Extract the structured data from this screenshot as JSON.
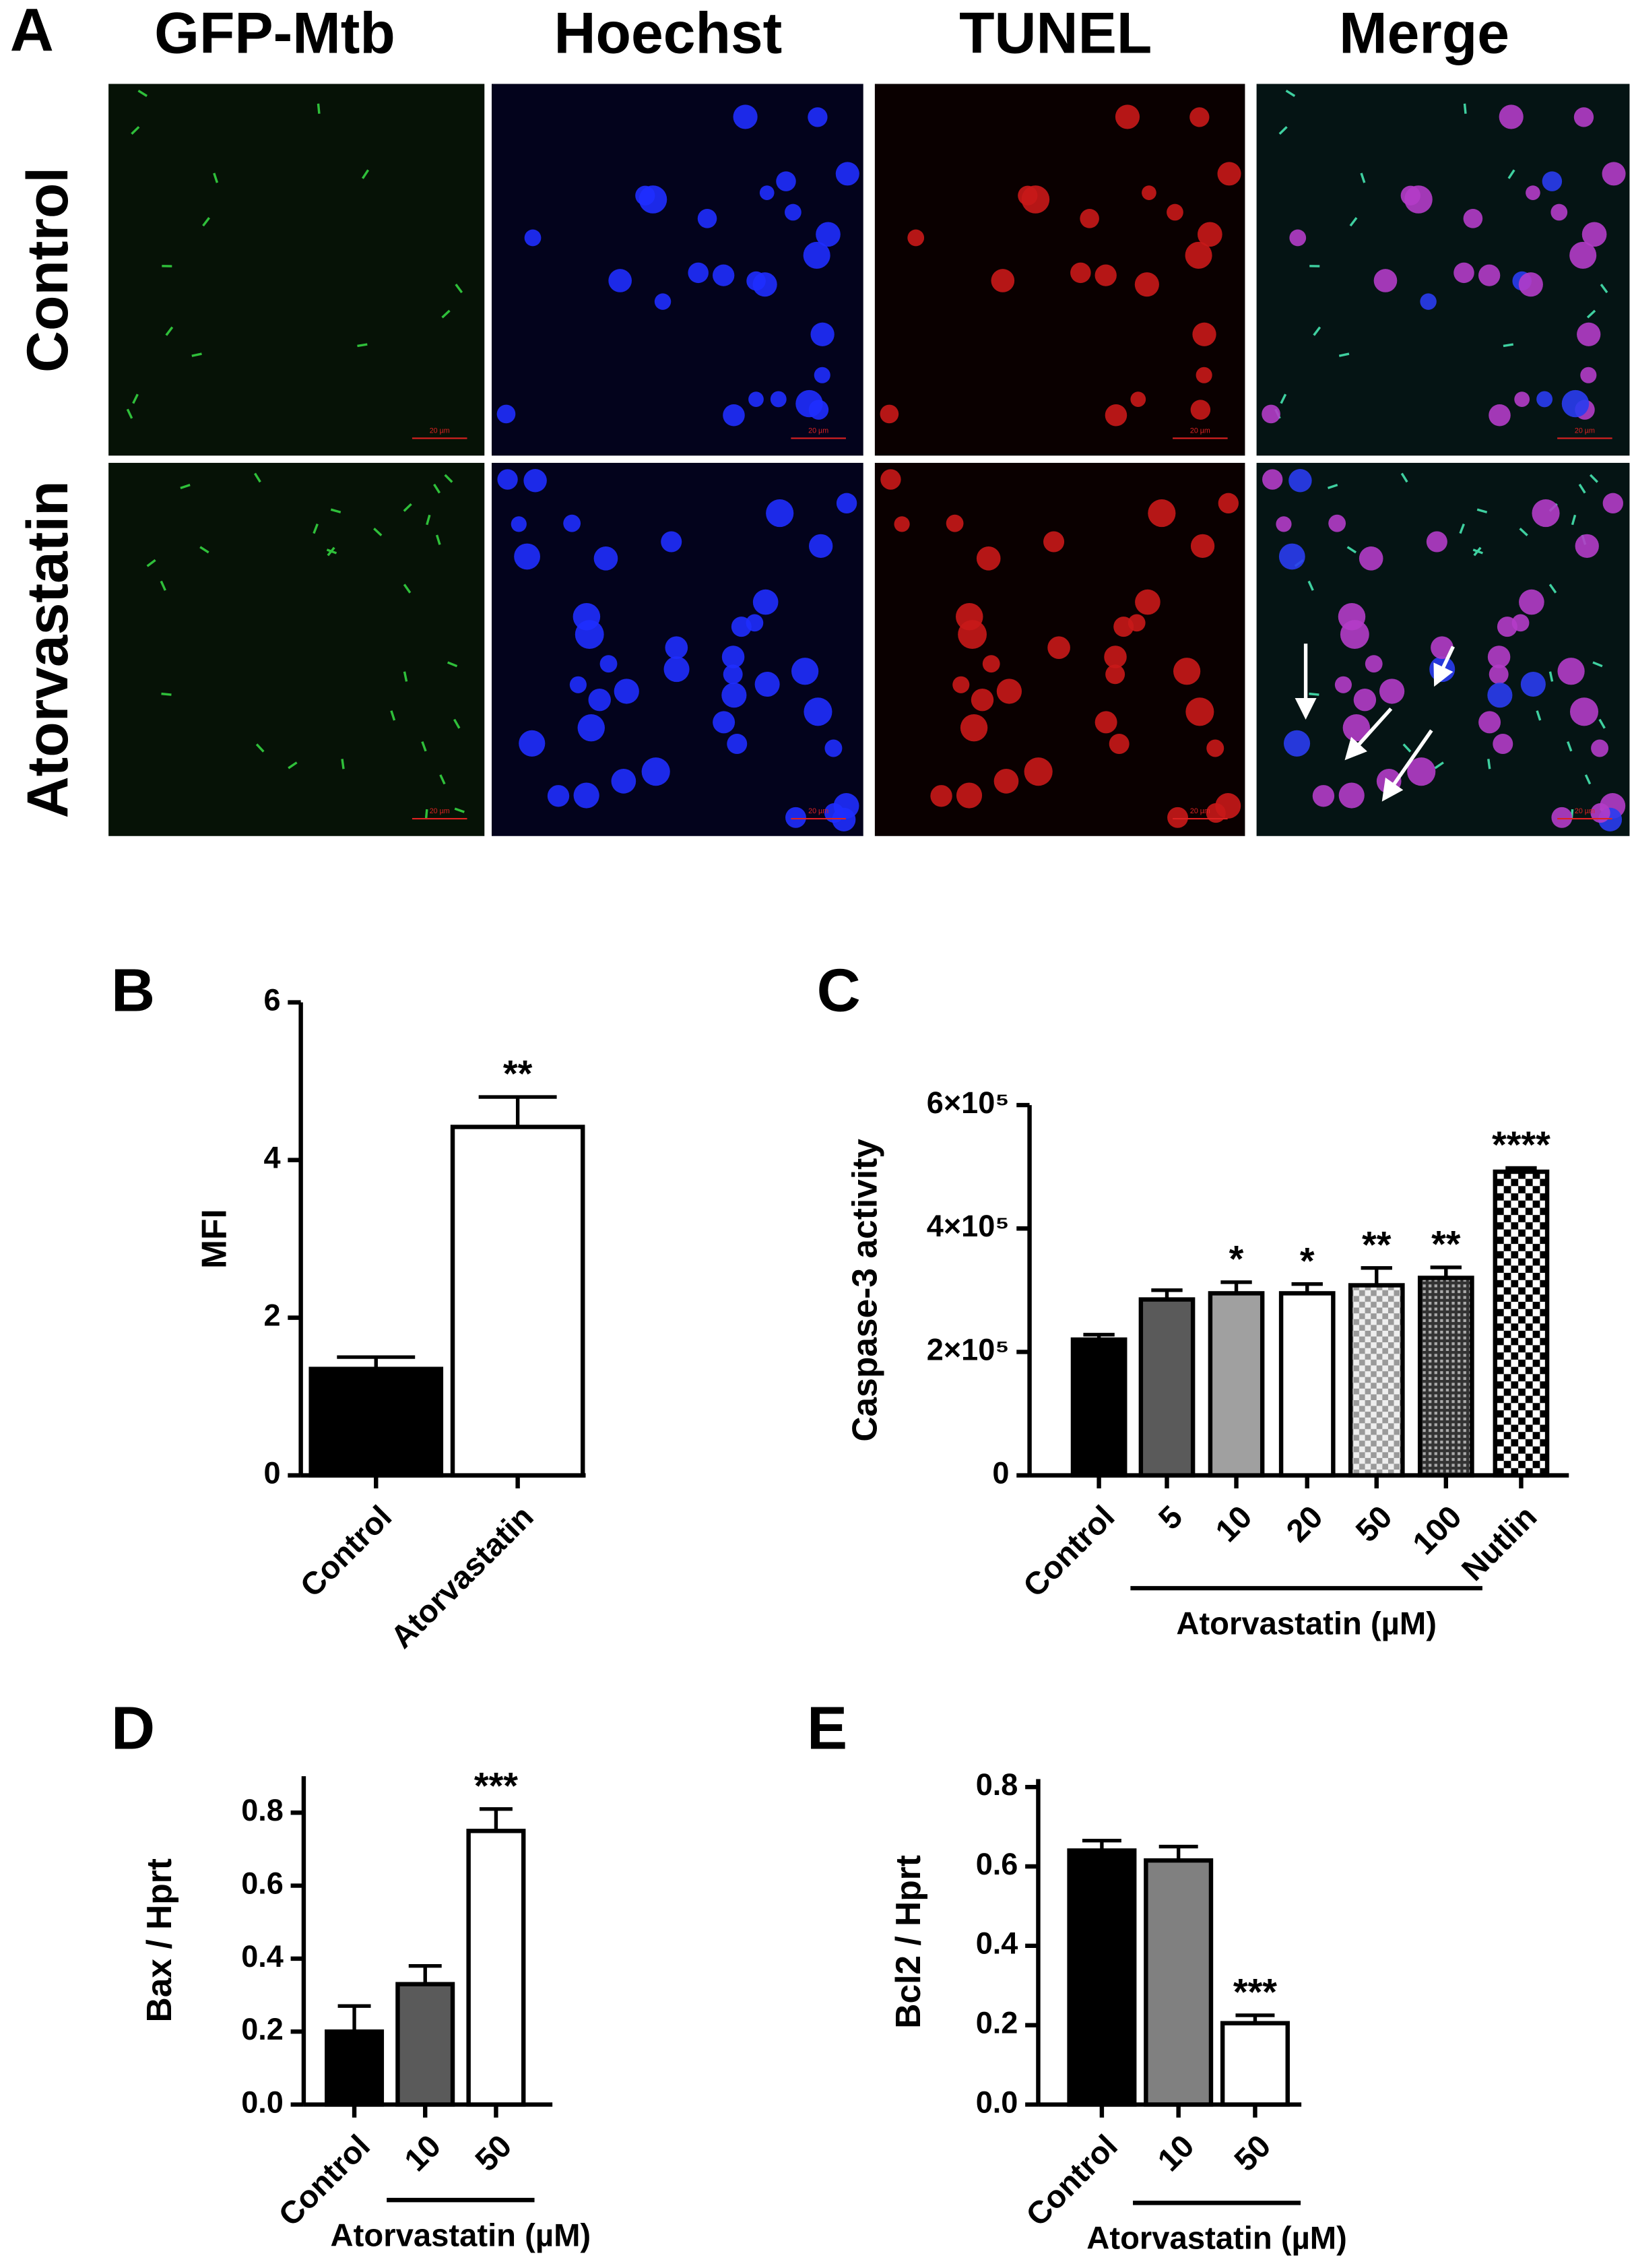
{
  "panel_a": {
    "label": "A",
    "columns": [
      "GFP-Mtb",
      "Hoechst",
      "TUNEL",
      "Merge"
    ],
    "rows": [
      "Control",
      "Atorvastatin"
    ],
    "scale_bar": "20 µm"
  },
  "chart_data": [
    {
      "type": "bar",
      "label": "B",
      "y_label": "MFI",
      "categories": [
        "Control",
        "Atorvastatin"
      ],
      "values": [
        1.35,
        4.42
      ],
      "errors": [
        0.15,
        0.38
      ],
      "significance": [
        null,
        "**"
      ],
      "fills": [
        "#000000",
        "#ffffff"
      ],
      "ylim": [
        0,
        6
      ],
      "yticks": [
        0,
        2,
        4,
        6
      ]
    },
    {
      "type": "bar",
      "label": "C",
      "y_label": "Caspase-3 activity",
      "categories": [
        "Control",
        "5",
        "10",
        "20",
        "50",
        "100",
        "Nutlin"
      ],
      "values": [
        220000,
        285000,
        295000,
        295000,
        308000,
        320000,
        492000
      ],
      "errors": [
        8000,
        15000,
        18000,
        15000,
        28000,
        17000,
        6000
      ],
      "significance": [
        null,
        null,
        "*",
        "*",
        "**",
        "**",
        "****"
      ],
      "fills": [
        "#000000",
        "#5a5a5a",
        "#a0a0a0",
        "#ffffff",
        "checker-light",
        "checker-dark",
        "checker-large"
      ],
      "group_label": "Atorvastatin (µM)",
      "ylim": [
        0,
        600000
      ],
      "yticks": [
        0,
        {
          "value": 200000,
          "label": "2×10⁵"
        },
        {
          "value": 400000,
          "label": "4×10⁵"
        },
        {
          "value": 600000,
          "label": "6×10⁵"
        }
      ]
    },
    {
      "type": "bar",
      "label": "D",
      "y_label": "Bax / Hprt",
      "categories": [
        "Control",
        "10",
        "50"
      ],
      "values": [
        0.2,
        0.33,
        0.75
      ],
      "errors": [
        0.07,
        0.05,
        0.06
      ],
      "significance": [
        null,
        null,
        "***"
      ],
      "fills": [
        "#000000",
        "#5a5a5a",
        "#ffffff"
      ],
      "group_label": "Atorvastatin (µM)",
      "ylim": [
        0,
        0.9
      ],
      "yticks": [
        {
          "value": 0,
          "label": "0.0"
        },
        0.2,
        0.4,
        0.6,
        0.8
      ]
    },
    {
      "type": "bar",
      "label": "E",
      "y_label": "Bcl2 / Hprt",
      "categories": [
        "Control",
        "10",
        "50"
      ],
      "values": [
        0.64,
        0.615,
        0.205
      ],
      "errors": [
        0.025,
        0.035,
        0.02
      ],
      "significance": [
        null,
        null,
        "***"
      ],
      "fills": [
        "#000000",
        "#808080",
        "#ffffff"
      ],
      "group_label": "Atorvastatin (µM)",
      "ylim": [
        0,
        0.82
      ],
      "yticks": [
        {
          "value": 0,
          "label": "0.0"
        },
        0.2,
        0.4,
        0.6,
        0.8
      ]
    }
  ]
}
